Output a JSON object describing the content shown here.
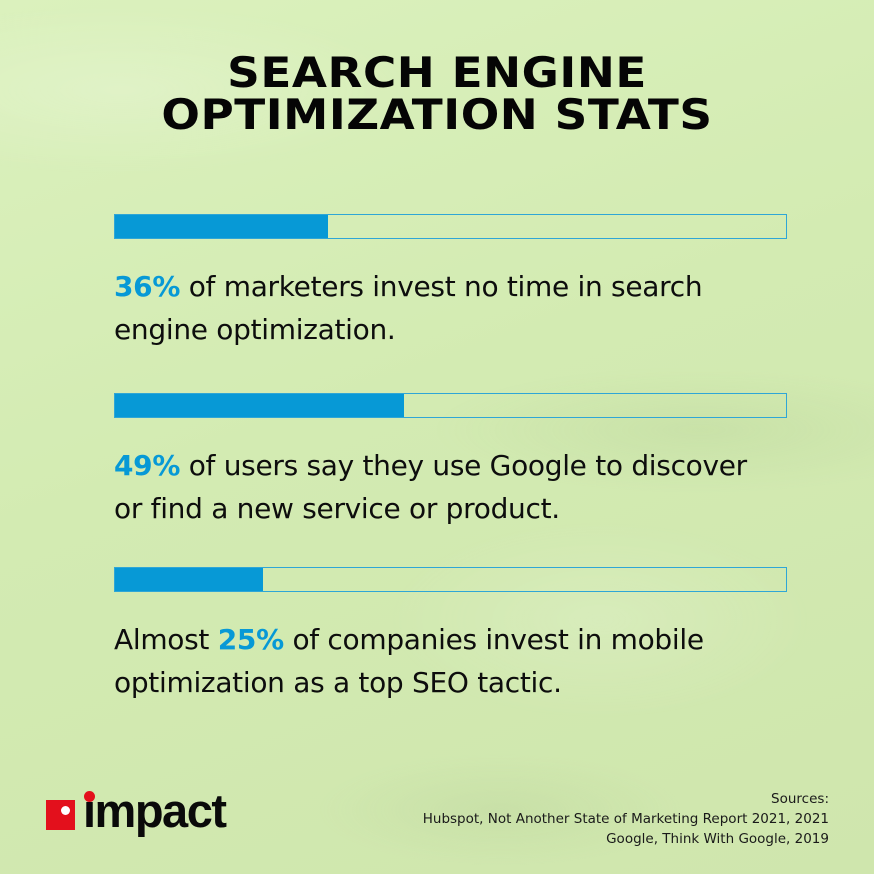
{
  "title": {
    "line1": "SEARCH ENGINE",
    "line2": "OPTIMIZATION STATS"
  },
  "colors": {
    "background": "#d6eeb6",
    "accent_blue": "#0799d6",
    "bar_border": "#2fa6d6",
    "logo_red": "#e3101c",
    "text": "#0d0d0d"
  },
  "stats": [
    {
      "percent_value": 36,
      "prefix": "",
      "highlight": "36%",
      "line1_rest": " of marketers invest no time in search",
      "line2": "engine optimization."
    },
    {
      "percent_value": 49,
      "prefix": "",
      "highlight": "49%",
      "line1_rest": " of users say they use Google to discover",
      "line2": "or find a new service or product."
    },
    {
      "percent_value": 25,
      "prefix": "Almost ",
      "highlight": "25%",
      "line1_rest": " of companies invest in mobile",
      "line2": "optimization as a top SEO tactic."
    }
  ],
  "chart_data": {
    "type": "bar",
    "orientation": "horizontal",
    "title": "SEARCH ENGINE OPTIMIZATION STATS",
    "categories": [
      "Marketers who invest no time in SEO",
      "Users who use Google to discover a new service or product",
      "Companies investing in mobile optimization as a top SEO tactic"
    ],
    "values": [
      36,
      49,
      25
    ],
    "unit": "%",
    "xlim": [
      0,
      100
    ],
    "grid": false,
    "legend": "none"
  },
  "logo": {
    "text": "impact"
  },
  "sources": {
    "heading": "Sources:",
    "items": [
      "Hubspot, Not Another State of Marketing Report 2021, 2021",
      "Google, Think With Google, 2019"
    ]
  }
}
